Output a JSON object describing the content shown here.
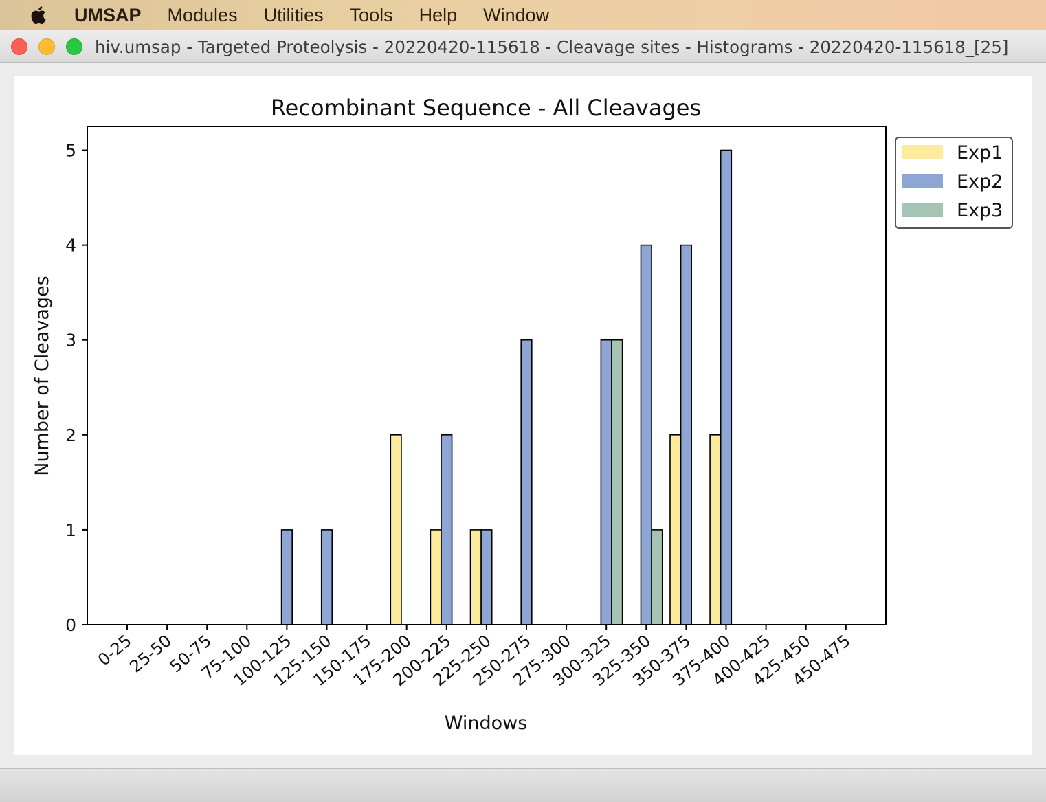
{
  "menubar": {
    "apple": "apple-logo",
    "items": [
      "UMSAP",
      "Modules",
      "Utilities",
      "Tools",
      "Help",
      "Window"
    ]
  },
  "window": {
    "title": "hiv.umsap - Targeted Proteolysis - 20220420-115618 - Cleavage sites - Histograms - 20220420-115618_[25]"
  },
  "chart_data": {
    "type": "bar",
    "title": "Recombinant Sequence - All Cleavages",
    "xlabel": "Windows",
    "ylabel": "Number of Cleavages",
    "ylim": [
      0,
      5.25
    ],
    "yticks": [
      0,
      1,
      2,
      3,
      4,
      5
    ],
    "grid": false,
    "legend_position": "outside-right-top",
    "categories": [
      "0-25",
      "25-50",
      "50-75",
      "75-100",
      "100-125",
      "125-150",
      "150-175",
      "175-200",
      "200-225",
      "225-250",
      "250-275",
      "275-300",
      "300-325",
      "325-350",
      "350-375",
      "375-400",
      "400-425",
      "425-450",
      "450-475"
    ],
    "series": [
      {
        "name": "Exp1",
        "color": "#fceb9c",
        "values": [
          0,
          0,
          0,
          0,
          0,
          0,
          0,
          2,
          1,
          1,
          0,
          0,
          0,
          0,
          2,
          2,
          0,
          0,
          0
        ]
      },
      {
        "name": "Exp2",
        "color": "#8da6d3",
        "values": [
          0,
          0,
          0,
          0,
          1,
          1,
          0,
          0,
          2,
          1,
          3,
          0,
          3,
          4,
          4,
          5,
          0,
          0,
          0
        ]
      },
      {
        "name": "Exp3",
        "color": "#a6c4b4",
        "values": [
          0,
          0,
          0,
          0,
          0,
          0,
          0,
          0,
          0,
          0,
          0,
          0,
          3,
          1,
          0,
          0,
          0,
          0,
          0
        ]
      }
    ]
  }
}
